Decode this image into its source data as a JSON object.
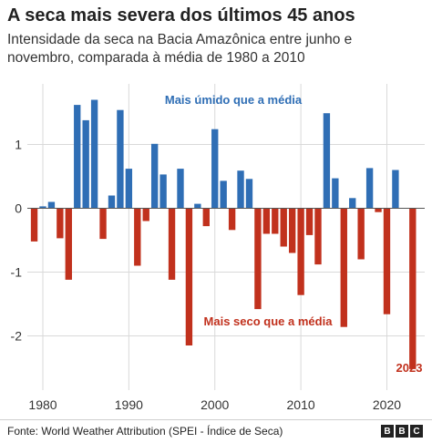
{
  "chart_data": {
    "type": "bar",
    "title": "A seca mais severa dos últimos 45 anos",
    "subtitle": "Intensidade da seca na Bacia Amazônica entre junho e novembro, comparada à média de 1980 a 2010",
    "x": [
      1979,
      1980,
      1981,
      1982,
      1983,
      1984,
      1985,
      1986,
      1987,
      1988,
      1989,
      1990,
      1991,
      1992,
      1993,
      1994,
      1995,
      1996,
      1997,
      1998,
      1999,
      2000,
      2001,
      2002,
      2003,
      2004,
      2005,
      2006,
      2007,
      2008,
      2009,
      2010,
      2011,
      2012,
      2013,
      2014,
      2015,
      2016,
      2017,
      2018,
      2019,
      2020,
      2021,
      2022,
      2023
    ],
    "values": [
      -0.52,
      0.03,
      0.1,
      -0.47,
      -1.12,
      1.62,
      1.38,
      1.7,
      -0.48,
      0.2,
      1.54,
      0.62,
      -0.9,
      -0.2,
      1.01,
      0.53,
      -1.12,
      0.62,
      -2.15,
      0.07,
      -0.28,
      1.24,
      0.43,
      -0.34,
      0.59,
      0.46,
      -1.58,
      -0.4,
      -0.4,
      -0.6,
      -0.7,
      -1.36,
      -0.42,
      -0.88,
      1.49,
      0.47,
      -1.86,
      0.16,
      -0.8,
      0.63,
      -0.06,
      -1.66,
      0.6,
      0.0,
      -2.52
    ],
    "y_ticks": [
      "-2",
      "-1",
      "0",
      "1"
    ],
    "y_tick_values": [
      -2,
      -1,
      0,
      1
    ],
    "x_ticks": [
      "1980",
      "1990",
      "2000",
      "2010",
      "2020"
    ],
    "x_tick_values": [
      1980,
      1990,
      2000,
      2010,
      2020
    ],
    "ylim": [
      -2.85,
      1.95
    ],
    "xlim": [
      1978.2,
      2024.4
    ],
    "grid": true,
    "annotations": {
      "wetter": "Mais úmido que a média",
      "drier": "Mais seco que a média",
      "last_year": "2023"
    },
    "colors": {
      "positive": "#2f6eb5",
      "negative": "#c1311d",
      "grid": "#d9d9d9",
      "zero": "#555555"
    }
  },
  "source": "Fonte: World Weather Attribution (SPEI - Índice de Seca)",
  "logo": [
    "B",
    "B",
    "C"
  ]
}
